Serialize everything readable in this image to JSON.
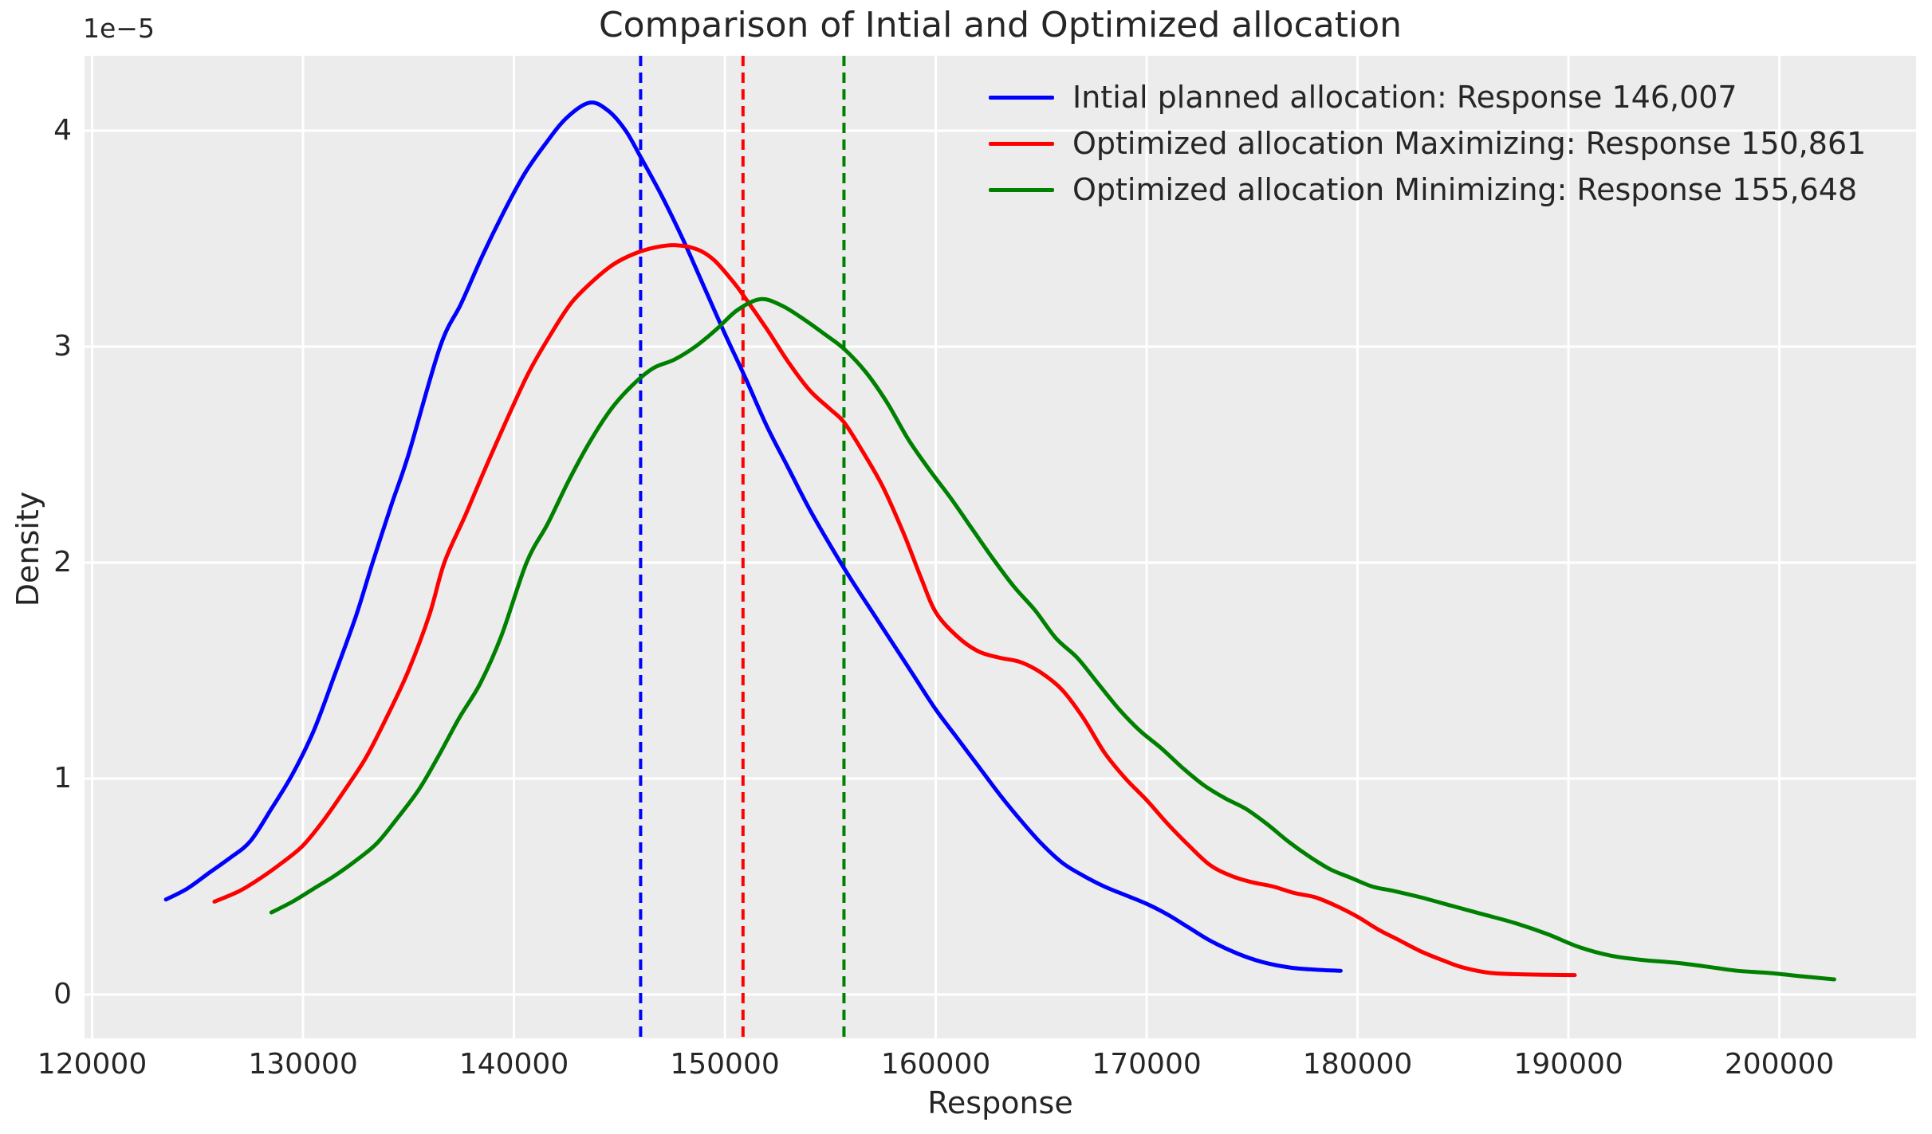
{
  "styles": {
    "figure_bg": "#ffffff",
    "plot_bg": "#ececec",
    "grid_color": "#ffffff",
    "text_color": "#262626"
  },
  "chart_data": {
    "type": "line",
    "title": "Comparison of Intial and Optimized allocation",
    "xlabel": "Response",
    "ylabel": "Density",
    "y_offset_label": "1e−5",
    "grid": true,
    "legend_position": "upper right",
    "xlim": [
      119640,
      206480
    ],
    "ylim_1e5": [
      -0.203,
      4.347
    ],
    "x_ticks": [
      120000,
      130000,
      140000,
      150000,
      160000,
      170000,
      180000,
      190000,
      200000
    ],
    "y_ticks_1e5": [
      0,
      1,
      2,
      3,
      4
    ],
    "mean_lines": [
      {
        "name": "initial-mean",
        "x": 146007,
        "color": "#0000ff",
        "style": "dashed"
      },
      {
        "name": "maximizing-mean",
        "x": 150861,
        "color": "#ff0000",
        "style": "dashed"
      },
      {
        "name": "minimizing-mean",
        "x": 155648,
        "color": "#008000",
        "style": "dashed"
      }
    ],
    "series": [
      {
        "name": "Intial planned allocation: Response 146,007",
        "color": "#0000ff",
        "style": "solid",
        "points": [
          [
            123500,
            0.44
          ],
          [
            124500,
            0.49
          ],
          [
            125500,
            0.56
          ],
          [
            126500,
            0.63
          ],
          [
            127500,
            0.71
          ],
          [
            128500,
            0.86
          ],
          [
            129500,
            1.02
          ],
          [
            130500,
            1.22
          ],
          [
            131500,
            1.48
          ],
          [
            132500,
            1.75
          ],
          [
            133300,
            2.0
          ],
          [
            134200,
            2.27
          ],
          [
            135000,
            2.5
          ],
          [
            136500,
            3.0
          ],
          [
            137500,
            3.2
          ],
          [
            138500,
            3.42
          ],
          [
            139500,
            3.62
          ],
          [
            140500,
            3.8
          ],
          [
            141500,
            3.94
          ],
          [
            142500,
            4.06
          ],
          [
            143600,
            4.13
          ],
          [
            144500,
            4.09
          ],
          [
            145300,
            4.0
          ],
          [
            146000,
            3.88
          ],
          [
            147000,
            3.7
          ],
          [
            148000,
            3.5
          ],
          [
            149000,
            3.28
          ],
          [
            150000,
            3.06
          ],
          [
            151000,
            2.85
          ],
          [
            152000,
            2.63
          ],
          [
            153000,
            2.44
          ],
          [
            154000,
            2.25
          ],
          [
            155000,
            2.08
          ],
          [
            156000,
            1.92
          ],
          [
            157000,
            1.77
          ],
          [
            158000,
            1.62
          ],
          [
            159000,
            1.47
          ],
          [
            160000,
            1.32
          ],
          [
            161000,
            1.19
          ],
          [
            162000,
            1.06
          ],
          [
            163000,
            0.93
          ],
          [
            164000,
            0.81
          ],
          [
            165000,
            0.7
          ],
          [
            166000,
            0.61
          ],
          [
            167000,
            0.55
          ],
          [
            168000,
            0.5
          ],
          [
            169000,
            0.46
          ],
          [
            170000,
            0.42
          ],
          [
            171000,
            0.37
          ],
          [
            172000,
            0.31
          ],
          [
            173000,
            0.25
          ],
          [
            174300,
            0.19
          ],
          [
            175500,
            0.15
          ],
          [
            176800,
            0.125
          ],
          [
            178000,
            0.115
          ],
          [
            179200,
            0.11
          ]
        ]
      },
      {
        "name": "Optimized allocation Maximizing: Response 150,861",
        "color": "#ff0000",
        "style": "solid",
        "points": [
          [
            125800,
            0.43
          ],
          [
            127000,
            0.48
          ],
          [
            128000,
            0.54
          ],
          [
            129000,
            0.61
          ],
          [
            130000,
            0.69
          ],
          [
            131000,
            0.81
          ],
          [
            132000,
            0.95
          ],
          [
            133000,
            1.1
          ],
          [
            134000,
            1.29
          ],
          [
            135000,
            1.5
          ],
          [
            136000,
            1.76
          ],
          [
            136700,
            2.0
          ],
          [
            137700,
            2.22
          ],
          [
            138700,
            2.45
          ],
          [
            139700,
            2.67
          ],
          [
            140700,
            2.88
          ],
          [
            141700,
            3.05
          ],
          [
            142700,
            3.2
          ],
          [
            143700,
            3.3
          ],
          [
            144700,
            3.38
          ],
          [
            145700,
            3.43
          ],
          [
            146700,
            3.46
          ],
          [
            147700,
            3.47
          ],
          [
            148700,
            3.45
          ],
          [
            149500,
            3.4
          ],
          [
            150400,
            3.3
          ],
          [
            150861,
            3.24
          ],
          [
            152000,
            3.08
          ],
          [
            153000,
            2.93
          ],
          [
            154000,
            2.8
          ],
          [
            155000,
            2.71
          ],
          [
            155650,
            2.65
          ],
          [
            156500,
            2.52
          ],
          [
            157500,
            2.35
          ],
          [
            158500,
            2.13
          ],
          [
            159300,
            1.93
          ],
          [
            160000,
            1.77
          ],
          [
            161000,
            1.66
          ],
          [
            162000,
            1.59
          ],
          [
            163000,
            1.56
          ],
          [
            164000,
            1.54
          ],
          [
            165000,
            1.49
          ],
          [
            166000,
            1.41
          ],
          [
            167000,
            1.28
          ],
          [
            168000,
            1.12
          ],
          [
            169000,
            1.0
          ],
          [
            170000,
            0.9
          ],
          [
            171000,
            0.79
          ],
          [
            172000,
            0.69
          ],
          [
            173000,
            0.6
          ],
          [
            174000,
            0.55
          ],
          [
            175000,
            0.52
          ],
          [
            176000,
            0.5
          ],
          [
            177000,
            0.47
          ],
          [
            178000,
            0.45
          ],
          [
            179000,
            0.41
          ],
          [
            180000,
            0.36
          ],
          [
            181000,
            0.3
          ],
          [
            182000,
            0.25
          ],
          [
            183000,
            0.2
          ],
          [
            184000,
            0.16
          ],
          [
            185000,
            0.125
          ],
          [
            186300,
            0.1
          ],
          [
            188000,
            0.093
          ],
          [
            189000,
            0.091
          ],
          [
            190300,
            0.09
          ]
        ]
      },
      {
        "name": "Optimized allocation Minimizing: Response 155,648",
        "color": "#008000",
        "style": "solid",
        "points": [
          [
            128500,
            0.38
          ],
          [
            129500,
            0.43
          ],
          [
            130500,
            0.49
          ],
          [
            131500,
            0.55
          ],
          [
            132500,
            0.62
          ],
          [
            133500,
            0.7
          ],
          [
            134500,
            0.82
          ],
          [
            135500,
            0.95
          ],
          [
            136400,
            1.1
          ],
          [
            137400,
            1.28
          ],
          [
            138400,
            1.44
          ],
          [
            139400,
            1.66
          ],
          [
            140600,
            2.0
          ],
          [
            141600,
            2.18
          ],
          [
            142600,
            2.38
          ],
          [
            143600,
            2.56
          ],
          [
            144600,
            2.71
          ],
          [
            145600,
            2.82
          ],
          [
            146600,
            2.9
          ],
          [
            147600,
            2.94
          ],
          [
            148600,
            3.0
          ],
          [
            149600,
            3.08
          ],
          [
            150600,
            3.17
          ],
          [
            151700,
            3.22
          ],
          [
            152700,
            3.19
          ],
          [
            153700,
            3.13
          ],
          [
            154700,
            3.06
          ],
          [
            155650,
            2.99
          ],
          [
            156700,
            2.88
          ],
          [
            157700,
            2.74
          ],
          [
            158700,
            2.57
          ],
          [
            159700,
            2.43
          ],
          [
            160700,
            2.3
          ],
          [
            161700,
            2.16
          ],
          [
            162700,
            2.02
          ],
          [
            163700,
            1.89
          ],
          [
            164700,
            1.78
          ],
          [
            165700,
            1.65
          ],
          [
            166700,
            1.56
          ],
          [
            167700,
            1.44
          ],
          [
            168700,
            1.32
          ],
          [
            169700,
            1.22
          ],
          [
            170700,
            1.14
          ],
          [
            171700,
            1.05
          ],
          [
            172700,
            0.97
          ],
          [
            173700,
            0.91
          ],
          [
            174700,
            0.86
          ],
          [
            175700,
            0.79
          ],
          [
            176700,
            0.71
          ],
          [
            177700,
            0.64
          ],
          [
            178700,
            0.58
          ],
          [
            179700,
            0.54
          ],
          [
            180700,
            0.5
          ],
          [
            181700,
            0.48
          ],
          [
            183000,
            0.45
          ],
          [
            184500,
            0.41
          ],
          [
            186000,
            0.37
          ],
          [
            187500,
            0.33
          ],
          [
            189000,
            0.28
          ],
          [
            190500,
            0.22
          ],
          [
            192000,
            0.18
          ],
          [
            193500,
            0.16
          ],
          [
            195000,
            0.148
          ],
          [
            196500,
            0.13
          ],
          [
            198000,
            0.11
          ],
          [
            199500,
            0.1
          ],
          [
            201000,
            0.085
          ],
          [
            202600,
            0.07
          ]
        ]
      }
    ]
  }
}
